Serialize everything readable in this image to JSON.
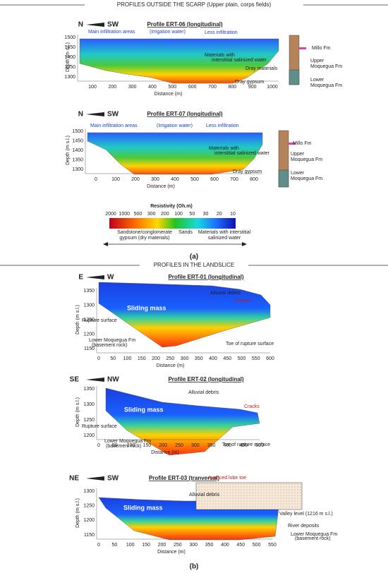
{
  "panel_a": {
    "header": "PROFILES OUTSIDE THE SCARP (Upper plain, corps fields)",
    "profiles": [
      {
        "orientation": [
          "N",
          "SW"
        ],
        "title": "Profile ERT-06 (longitudinal)",
        "y_label": "Depth (m s.l.)",
        "x_label": "Distance (m)",
        "yticks": [
          1500,
          1450,
          1400,
          1350,
          1300
        ],
        "xticks": [
          100,
          200,
          300,
          400,
          500,
          600,
          700,
          800,
          900,
          1000
        ],
        "annotations": [
          "Main infiltration areas",
          "(Irrigation water)",
          "Less infiltration",
          "Materials with",
          "interstitial salinized water",
          "Dray materials",
          "Dray gypsum"
        ],
        "formations": [
          [
            "Millo Fm"
          ],
          [
            "Upper",
            "Moquegua Fm"
          ],
          [
            "Lower",
            "Moquegua Fm"
          ]
        ]
      },
      {
        "orientation": [
          "N",
          "SW"
        ],
        "title": "Profile ERT-07 (longitudinal)",
        "y_label": "Depth (m s.l.)",
        "x_label": "Distance (m)",
        "yticks": [
          1500,
          1450,
          1400,
          1350,
          1300
        ],
        "xticks": [
          0,
          100,
          200,
          300,
          400,
          500,
          600,
          700,
          800
        ],
        "annotations": [
          "Main infiltration areas",
          "(Irrigation water)",
          "Less infiltration",
          "Materials with",
          "interstitial salinized water",
          "Dray gypsum"
        ],
        "formations": [
          [
            "Millo Fm"
          ],
          [
            "Upper",
            "Moquegua Fm"
          ],
          [
            "Lower",
            "Moquegua Fm"
          ]
        ]
      }
    ],
    "legend": {
      "title": "Resistivity (Oh.m)",
      "ticks": [
        2000,
        1000,
        500,
        300,
        200,
        100,
        50,
        30,
        20,
        10
      ],
      "left": [
        "Sandstone/conglomerate",
        "gypsum (dry materials)"
      ],
      "middle": "Sands",
      "right": [
        "Materials with interstitial",
        "salinized water"
      ]
    },
    "label": "(a)"
  },
  "panel_b": {
    "header": "PROFILES IN THE LANDSLICE",
    "profiles": [
      {
        "orientation": [
          "E",
          "W"
        ],
        "title": "Profile ERT-01  (longitudinal)",
        "y_label": "Depth (m s.l.)",
        "x_label": "Distance (m)",
        "yticks": [
          1350,
          1300,
          1250,
          1200,
          1150
        ],
        "xticks": [
          0,
          50,
          100,
          150,
          200,
          250,
          300,
          350,
          400,
          450,
          500,
          550,
          600
        ],
        "annotations": [
          "Alluvial debris",
          "Cracks",
          "Sliding mass",
          "Rupture surface",
          "Lower Moquegua Fm",
          "(basement rock)",
          "Toe of rupture surface"
        ]
      },
      {
        "orientation": [
          "SE",
          "NW"
        ],
        "title": "Profile ERT-02  (longitudinal)",
        "y_label": "Depth (m s.l.)",
        "x_label": "Distance (m)",
        "yticks": [
          1350,
          1300,
          1250,
          1200
        ],
        "xticks": [
          0,
          50,
          100,
          150,
          200,
          250,
          300,
          350,
          400,
          450,
          500
        ],
        "annotations": [
          "Alluvial debris",
          "Cracks",
          "Sliding mass",
          "Rupture surface",
          "Lower Moquegua Fm",
          "(basement rock)",
          "Toe of rupture surface"
        ]
      },
      {
        "orientation": [
          "NE",
          "SW"
        ],
        "title": "Profile ERT-03  (tranversal)",
        "y_label": "Depth (m s.l.)",
        "x_label": "Distance (m)",
        "yticks": [
          1300,
          1250,
          1200,
          1150
        ],
        "xticks": [
          0,
          50,
          100,
          150,
          200,
          250,
          300,
          350,
          400,
          450,
          500,
          550
        ],
        "annotations": [
          "Avanced lobe toe",
          "Alluvial debris",
          "Sliding mass",
          "Valley level (1216 m s.l.)",
          "River deposits",
          "Lower Moquegua Fm",
          "(basement rock)"
        ]
      }
    ],
    "label": "(b)"
  }
}
